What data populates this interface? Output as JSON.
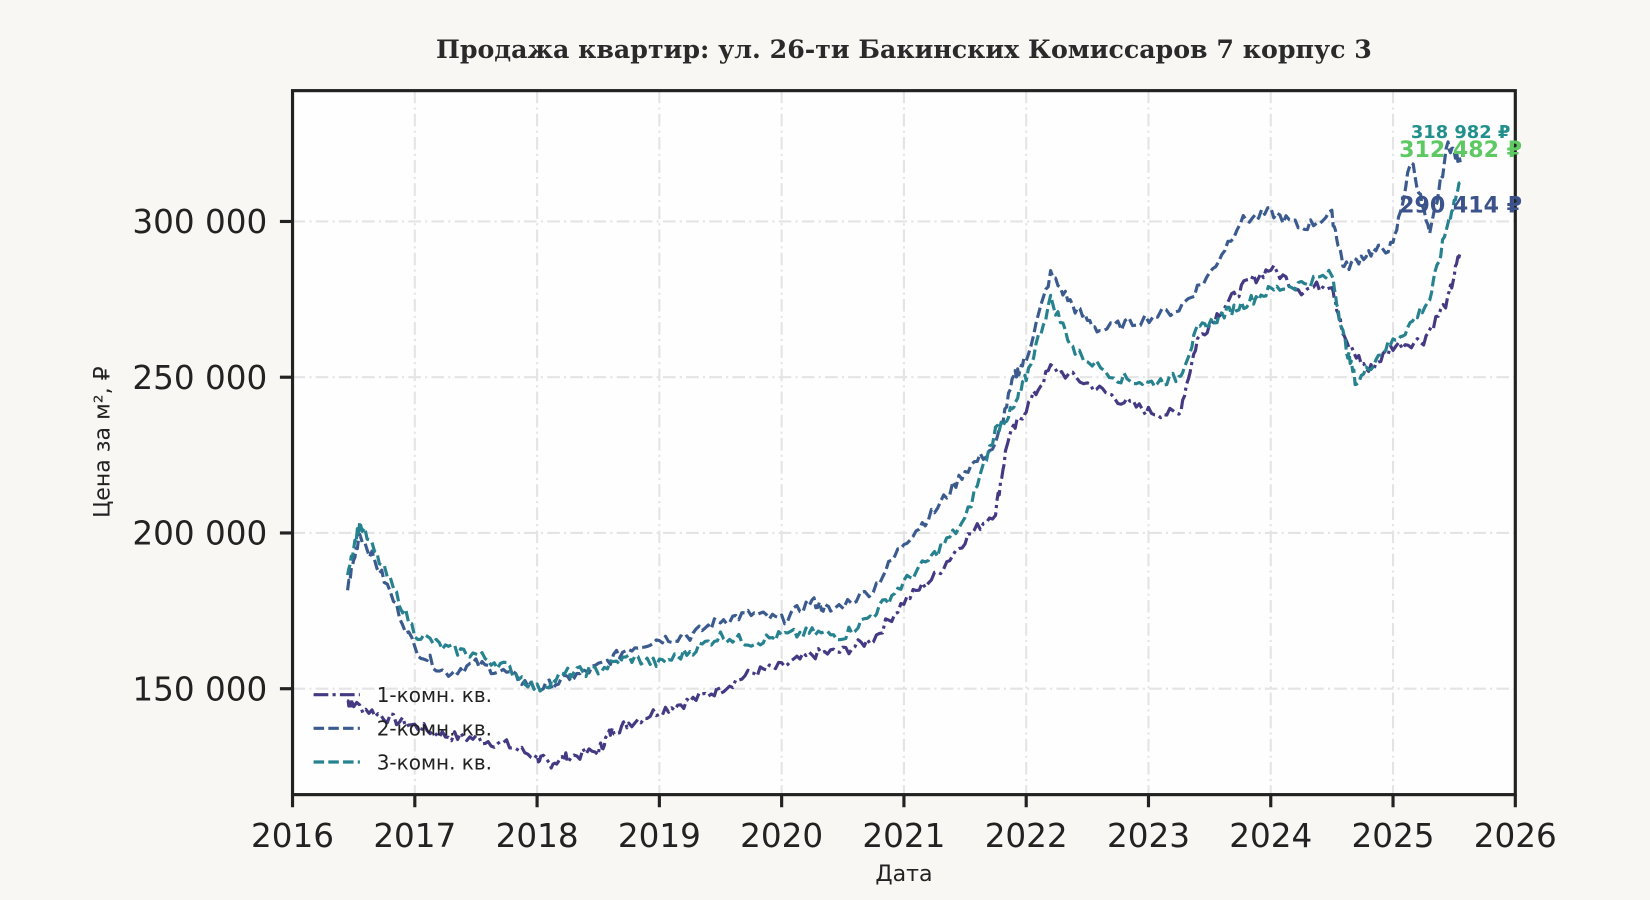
{
  "chart_data": {
    "type": "line",
    "title": "Продажа квартир: ул. 26-ти Бакинских Комиссаров 7 корпус 3",
    "xlabel": "Дата",
    "ylabel": "Цена за м², ₽",
    "xlim": [
      2016,
      2026
    ],
    "ylim": [
      116000,
      342000
    ],
    "x_ticks": [
      "2016",
      "2017",
      "2018",
      "2019",
      "2020",
      "2021",
      "2022",
      "2023",
      "2024",
      "2025",
      "2026"
    ],
    "y_ticks": [
      {
        "value": 150000,
        "label": "150 000"
      },
      {
        "value": 200000,
        "label": "200 000"
      },
      {
        "value": 250000,
        "label": "250 000"
      },
      {
        "value": 300000,
        "label": "300 000"
      }
    ],
    "grid": true,
    "legend_position": "bottom-left",
    "series": [
      {
        "name": "1-комн. кв.",
        "color": "#433a83",
        "dash": "dashdot",
        "x": [
          2016.45,
          2016.5,
          2016.75,
          2017.0,
          2017.25,
          2017.5,
          2017.75,
          2018.0,
          2018.1,
          2018.25,
          2018.5,
          2018.6,
          2018.75,
          2019.0,
          2019.25,
          2019.5,
          2019.75,
          2020.0,
          2020.25,
          2020.5,
          2020.75,
          2021.0,
          2021.25,
          2021.5,
          2021.75,
          2021.85,
          2022.0,
          2022.2,
          2022.5,
          2022.75,
          2023.0,
          2023.25,
          2023.4,
          2023.6,
          2023.8,
          2024.0,
          2024.25,
          2024.5,
          2024.6,
          2024.8,
          2025.0,
          2025.25,
          2025.45,
          2025.55
        ],
        "y": [
          146000,
          145000,
          141000,
          138000,
          135000,
          134000,
          132000,
          128000,
          126000,
          128000,
          130000,
          136000,
          139000,
          143000,
          146000,
          150000,
          155000,
          157000,
          161000,
          162000,
          166000,
          178000,
          186000,
          198000,
          207000,
          230000,
          240000,
          253000,
          248000,
          243000,
          239000,
          238000,
          262000,
          272000,
          280000,
          285000,
          278000,
          280000,
          262000,
          252000,
          260000,
          262000,
          275000,
          290414
        ]
      },
      {
        "name": "2-комн. кв.",
        "color": "#3b5b8e",
        "dash": "dashed",
        "x": [
          2016.45,
          2016.55,
          2016.75,
          2017.0,
          2017.25,
          2017.5,
          2017.75,
          2018.0,
          2018.25,
          2018.5,
          2018.75,
          2019.0,
          2019.25,
          2019.5,
          2019.75,
          2020.0,
          2020.25,
          2020.4,
          2020.75,
          2021.0,
          2021.25,
          2021.5,
          2021.75,
          2021.9,
          2022.0,
          2022.2,
          2022.4,
          2022.6,
          2022.9,
          2023.25,
          2023.5,
          2023.75,
          2024.0,
          2024.25,
          2024.5,
          2024.6,
          2024.8,
          2025.0,
          2025.15,
          2025.3,
          2025.45,
          2025.55
        ],
        "y": [
          182000,
          200000,
          185000,
          163000,
          155000,
          158000,
          155000,
          150000,
          153000,
          157000,
          163000,
          166000,
          167000,
          172000,
          174000,
          172000,
          178000,
          175000,
          182000,
          197000,
          207000,
          220000,
          228000,
          250000,
          256000,
          283000,
          272000,
          265000,
          268000,
          272000,
          283000,
          300000,
          303000,
          298000,
          302000,
          285000,
          290000,
          292000,
          320000,
          295000,
          325000,
          318982
        ]
      },
      {
        "name": "3-комн. кв.",
        "color": "#26828e",
        "dash": "dashed",
        "x": [
          2016.45,
          2016.55,
          2016.75,
          2017.0,
          2017.25,
          2017.5,
          2017.75,
          2018.0,
          2018.25,
          2018.5,
          2018.75,
          2019.0,
          2019.25,
          2019.5,
          2019.75,
          2020.0,
          2020.25,
          2020.5,
          2020.75,
          2021.0,
          2021.25,
          2021.5,
          2021.75,
          2021.9,
          2022.0,
          2022.2,
          2022.4,
          2022.75,
          2023.0,
          2023.25,
          2023.4,
          2023.6,
          2023.8,
          2024.0,
          2024.25,
          2024.5,
          2024.6,
          2024.7,
          2024.9,
          2025.1,
          2025.3,
          2025.45,
          2025.55
        ],
        "y": [
          188000,
          203000,
          188000,
          168000,
          163000,
          161000,
          157000,
          150000,
          155000,
          156000,
          160000,
          158000,
          162000,
          167000,
          165000,
          167000,
          168000,
          167000,
          174000,
          184000,
          193000,
          204000,
          233000,
          240000,
          250000,
          275000,
          258000,
          250000,
          248000,
          250000,
          265000,
          270000,
          274000,
          278000,
          280000,
          283000,
          262000,
          248000,
          258000,
          265000,
          275000,
          300000,
          312482
        ]
      }
    ],
    "annotations": [
      {
        "text": "318 982 ₽",
        "color": "#21908c"
      },
      {
        "text": "312 482 ₽",
        "color": "#5ec962"
      },
      {
        "text": "290 414 ₽",
        "color": "#3b528b"
      }
    ]
  }
}
